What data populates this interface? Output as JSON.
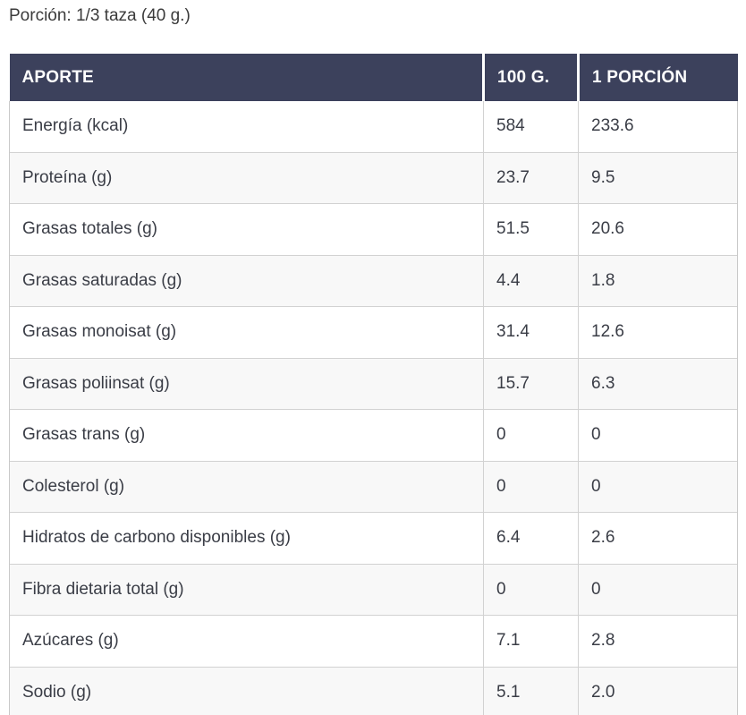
{
  "page": {
    "portion_label": "Porción: 1/3 taza (40 g.)"
  },
  "colors": {
    "header_bg": "#3c415c",
    "header_text": "#ffffff",
    "row_alt_bg": "#f8f8f8",
    "border": "#d2d2d2",
    "body_text": "#3a3d46"
  },
  "table": {
    "columns": [
      "APORTE",
      "100 G.",
      "1 PORCIÓN"
    ],
    "rows": [
      {
        "label": "Energía (kcal)",
        "per_100g": "584",
        "per_portion": "233.6"
      },
      {
        "label": "Proteína (g)",
        "per_100g": "23.7",
        "per_portion": "9.5"
      },
      {
        "label": "Grasas totales (g)",
        "per_100g": "51.5",
        "per_portion": "20.6"
      },
      {
        "label": "Grasas saturadas (g)",
        "per_100g": "4.4",
        "per_portion": "1.8"
      },
      {
        "label": "Grasas monoisat (g)",
        "per_100g": "31.4",
        "per_portion": "12.6"
      },
      {
        "label": "Grasas poliinsat (g)",
        "per_100g": "15.7",
        "per_portion": "6.3"
      },
      {
        "label": "Grasas trans (g)",
        "per_100g": "0",
        "per_portion": "0"
      },
      {
        "label": "Colesterol (g)",
        "per_100g": "0",
        "per_portion": "0"
      },
      {
        "label": "Hidratos de carbono disponibles (g)",
        "per_100g": "6.4",
        "per_portion": "2.6"
      },
      {
        "label": "Fibra dietaria total (g)",
        "per_100g": "0",
        "per_portion": "0"
      },
      {
        "label": "Azúcares (g)",
        "per_100g": "7.1",
        "per_portion": "2.8"
      },
      {
        "label": "Sodio (g)",
        "per_100g": "5.1",
        "per_portion": "2.0"
      }
    ]
  }
}
